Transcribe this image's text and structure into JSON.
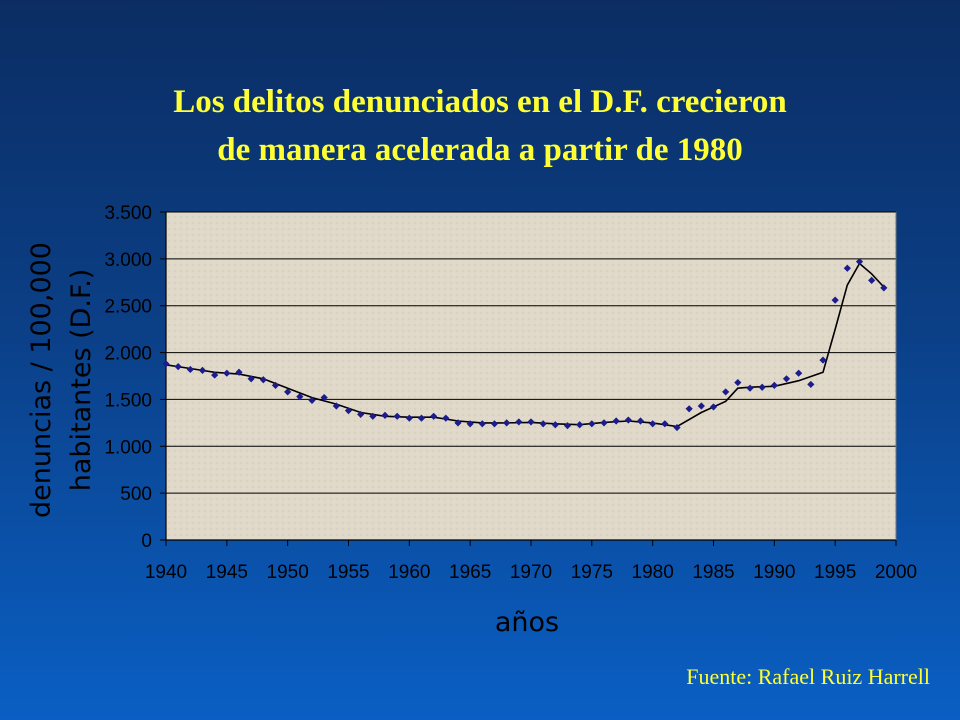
{
  "slide": {
    "title_line1": "Los delitos denunciados  en el D.F. crecieron",
    "title_line2": "de manera acelerada a partir de 1980",
    "source": "Fuente: Rafael Ruiz Harrell"
  },
  "colors": {
    "background_top": "#0b2d63",
    "background_bottom": "#0a5fc4",
    "title": "#ffff33",
    "plot_area": "#e0d8c8",
    "markers": "#1c1c8c",
    "trend_line": "#000000",
    "gridlines": "#000000"
  },
  "chart_data": {
    "type": "scatter",
    "title": "",
    "xlabel": "años",
    "ylabel_line1": "denuncias / 100,000",
    "ylabel_line2": "habitantes (D.F.)",
    "xlim": [
      1940,
      2000
    ],
    "ylim": [
      0,
      3500
    ],
    "x_ticks": [
      1940,
      1945,
      1950,
      1955,
      1960,
      1965,
      1970,
      1975,
      1980,
      1985,
      1990,
      1995,
      2000
    ],
    "x_tick_labels": [
      "1940",
      "1945",
      "1950",
      "1955",
      "1960",
      "1965",
      "1970",
      "1975",
      "1980",
      "1985",
      "1990",
      "1995",
      "2000"
    ],
    "y_ticks": [
      0,
      500,
      1000,
      1500,
      2000,
      2500,
      3000,
      3500
    ],
    "y_tick_labels": [
      "0",
      "500",
      "1.000",
      "1.500",
      "2.000",
      "2.500",
      "3.000",
      "3.500"
    ],
    "grid": "horizontal",
    "marker_shape": "diamond",
    "series": [
      {
        "x": [
          1940,
          1941,
          1942,
          1943,
          1944,
          1945,
          1946,
          1947,
          1948,
          1949,
          1950,
          1951,
          1952,
          1953,
          1954,
          1955,
          1956,
          1957,
          1958,
          1959,
          1960,
          1961,
          1962,
          1963,
          1964,
          1965,
          1966,
          1967,
          1968,
          1969,
          1970,
          1971,
          1972,
          1973,
          1974,
          1975,
          1976,
          1977,
          1978,
          1979,
          1980,
          1981,
          1982,
          1983,
          1984,
          1985,
          1986,
          1987,
          1988,
          1989,
          1990,
          1991,
          1992,
          1993,
          1994,
          1995,
          1996,
          1997,
          1998,
          1999
        ],
        "y": [
          1880,
          1850,
          1820,
          1810,
          1760,
          1780,
          1790,
          1720,
          1710,
          1650,
          1580,
          1530,
          1490,
          1520,
          1430,
          1380,
          1340,
          1320,
          1330,
          1320,
          1300,
          1300,
          1320,
          1300,
          1250,
          1240,
          1240,
          1240,
          1250,
          1260,
          1260,
          1240,
          1230,
          1220,
          1230,
          1240,
          1250,
          1270,
          1280,
          1270,
          1240,
          1240,
          1200,
          1400,
          1430,
          1420,
          1580,
          1680,
          1620,
          1630,
          1650,
          1720,
          1780,
          1660,
          1920,
          2560,
          2900,
          2970,
          2770,
          2690
        ]
      }
    ],
    "trend_line": {
      "x": [
        1940,
        1942,
        1944,
        1946,
        1948,
        1950,
        1952,
        1954,
        1956,
        1958,
        1960,
        1962,
        1964,
        1966,
        1968,
        1970,
        1972,
        1974,
        1976,
        1978,
        1980,
        1982,
        1984,
        1986,
        1987,
        1988,
        1990,
        1992,
        1994,
        1995,
        1996,
        1997,
        1998,
        1999
      ],
      "y": [
        1870,
        1830,
        1790,
        1770,
        1720,
        1620,
        1520,
        1450,
        1360,
        1320,
        1310,
        1310,
        1270,
        1250,
        1250,
        1255,
        1240,
        1230,
        1255,
        1270,
        1250,
        1210,
        1360,
        1480,
        1620,
        1630,
        1640,
        1700,
        1790,
        2250,
        2720,
        2950,
        2840,
        2700
      ]
    }
  }
}
